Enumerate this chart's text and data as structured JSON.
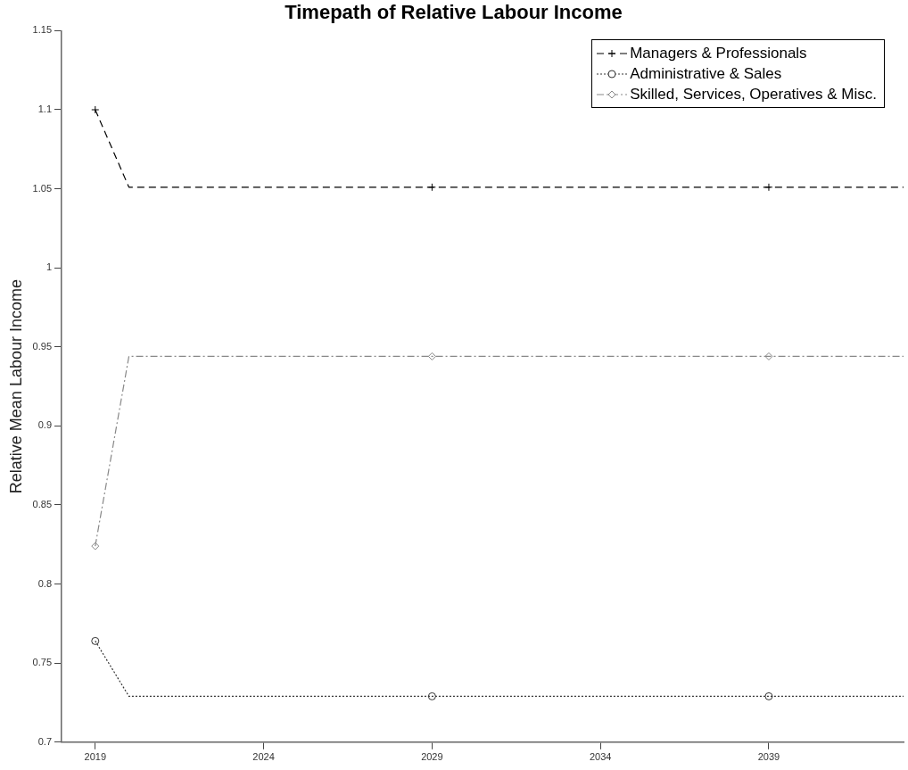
{
  "chart_data": {
    "type": "line",
    "title": "Timepath of Relative Labour Income",
    "ylabel": "Relative Mean Labour Income",
    "x": [
      2019,
      2020,
      2029,
      2039,
      2043
    ],
    "xlim": [
      2018,
      2043
    ],
    "xticks": [
      2019,
      2024,
      2029,
      2034,
      2039
    ],
    "ylim": [
      0.7,
      1.15
    ],
    "yticks": [
      0.7,
      0.75,
      0.8,
      0.85,
      0.9,
      0.95,
      1,
      1.05,
      1.1,
      1.15
    ],
    "grid": false,
    "legend": "top right",
    "series": [
      {
        "name": "Managers & Professionals",
        "color": "#000000",
        "line_style": "dashed",
        "marker": "cross",
        "values": [
          1.1,
          1.051,
          1.051,
          1.051,
          1.051
        ]
      },
      {
        "name": "Administrative & Sales",
        "color": "#333333",
        "line_style": "dotted",
        "marker": "circle",
        "values": [
          0.764,
          0.729,
          0.729,
          0.729,
          0.729
        ]
      },
      {
        "name": "Skilled, Services, Operatives & Misc.",
        "color": "#888888",
        "line_style": "dashdot",
        "marker": "diamond",
        "values": [
          0.824,
          0.944,
          0.944,
          0.944,
          0.944
        ]
      }
    ]
  }
}
